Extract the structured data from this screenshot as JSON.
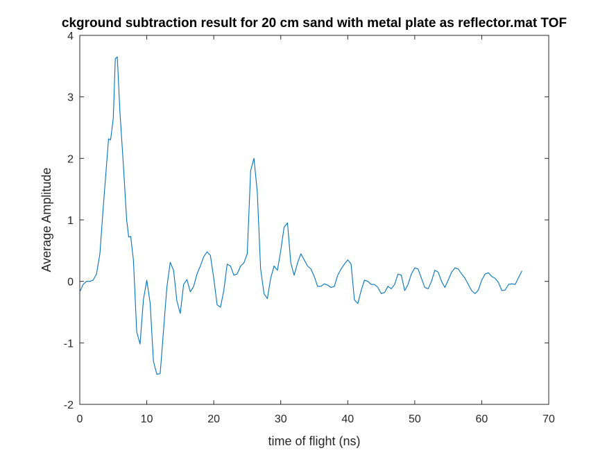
{
  "chart_data": {
    "type": "line",
    "title": "ckground subtraction result for 20 cm sand with metal plate as reflector.mat TOF",
    "xlabel": "time of flight (ns)",
    "ylabel": "Average Amplitude",
    "xlim": [
      0,
      70
    ],
    "ylim": [
      -2,
      4
    ],
    "xticks": [
      0,
      10,
      20,
      30,
      40,
      50,
      60,
      70
    ],
    "yticks": [
      -2,
      -1,
      0,
      1,
      2,
      3,
      4
    ],
    "grid": false,
    "line_color": "#0072BD",
    "axis_color": "#262626",
    "series": [
      {
        "x": [
          0.0,
          0.5,
          1.0,
          1.5,
          2.0,
          2.5,
          3.0,
          3.5,
          4.0,
          4.3,
          4.6,
          5.0,
          5.3,
          5.6,
          6.0,
          6.5,
          7.0,
          7.3,
          7.6,
          8.0,
          8.5,
          9.0,
          9.5,
          10.0,
          10.5,
          11.0,
          11.5,
          12.0,
          12.5,
          13.0,
          13.5,
          14.0,
          14.5,
          15.0,
          15.5,
          16.0,
          16.5,
          17.0,
          17.5,
          18.0,
          18.5,
          19.0,
          19.5,
          20.0,
          20.5,
          21.0,
          21.5,
          22.0,
          22.5,
          23.0,
          23.5,
          24.0,
          24.5,
          25.0,
          25.5,
          26.0,
          26.5,
          27.0,
          27.5,
          28.0,
          28.5,
          29.0,
          29.5,
          30.0,
          30.5,
          31.0,
          31.5,
          32.0,
          32.5,
          33.0,
          33.5,
          34.0,
          34.5,
          35.0,
          35.5,
          36.0,
          36.5,
          37.0,
          37.5,
          38.0,
          38.5,
          39.0,
          39.5,
          40.0,
          40.5,
          41.0,
          41.5,
          42.0,
          42.5,
          43.0,
          43.5,
          44.0,
          44.5,
          45.0,
          45.5,
          46.0,
          46.5,
          47.0,
          47.5,
          48.0,
          48.5,
          49.0,
          49.5,
          50.0,
          50.5,
          51.0,
          51.5,
          52.0,
          52.5,
          53.0,
          53.5,
          54.0,
          54.5,
          55.0,
          55.5,
          56.0,
          56.5,
          57.0,
          57.5,
          58.0,
          58.5,
          59.0,
          59.5,
          60.0,
          60.5,
          61.0,
          61.5,
          62.0,
          62.5,
          63.0,
          63.5,
          64.0,
          64.5,
          65.0,
          65.5,
          66.0
        ],
        "y": [
          -0.17,
          -0.05,
          0.0,
          0.0,
          0.02,
          0.12,
          0.45,
          1.2,
          1.9,
          2.32,
          2.3,
          2.65,
          3.62,
          3.65,
          2.75,
          1.9,
          1.0,
          0.72,
          0.73,
          0.35,
          -0.82,
          -1.02,
          -0.3,
          0.02,
          -0.35,
          -1.3,
          -1.51,
          -1.5,
          -0.8,
          -0.1,
          0.31,
          0.18,
          -0.32,
          -0.52,
          -0.05,
          0.03,
          -0.17,
          -0.08,
          0.12,
          0.25,
          0.4,
          0.48,
          0.42,
          0.05,
          -0.38,
          -0.42,
          -0.15,
          0.28,
          0.25,
          0.1,
          0.12,
          0.25,
          0.3,
          0.45,
          1.8,
          2.0,
          1.45,
          0.2,
          -0.2,
          -0.28,
          0.05,
          0.25,
          0.18,
          0.5,
          0.88,
          0.95,
          0.3,
          0.1,
          0.3,
          0.45,
          0.35,
          0.25,
          0.2,
          0.08,
          -0.08,
          -0.08,
          -0.04,
          -0.06,
          -0.1,
          -0.08,
          0.1,
          0.2,
          0.28,
          0.35,
          0.28,
          -0.3,
          -0.36,
          -0.15,
          0.02,
          0.0,
          -0.05,
          -0.05,
          -0.1,
          -0.2,
          -0.18,
          -0.08,
          -0.12,
          -0.05,
          0.12,
          0.1,
          -0.15,
          -0.05,
          0.12,
          0.22,
          0.2,
          0.05,
          -0.1,
          -0.12,
          0.0,
          0.18,
          0.15,
          0.0,
          -0.1,
          0.02,
          0.15,
          0.22,
          0.2,
          0.12,
          0.05,
          -0.05,
          -0.15,
          -0.2,
          -0.14,
          0.02,
          0.12,
          0.14,
          0.08,
          0.05,
          -0.02,
          -0.15,
          -0.14,
          -0.05,
          -0.04,
          -0.05,
          0.06,
          0.17
        ]
      }
    ]
  }
}
